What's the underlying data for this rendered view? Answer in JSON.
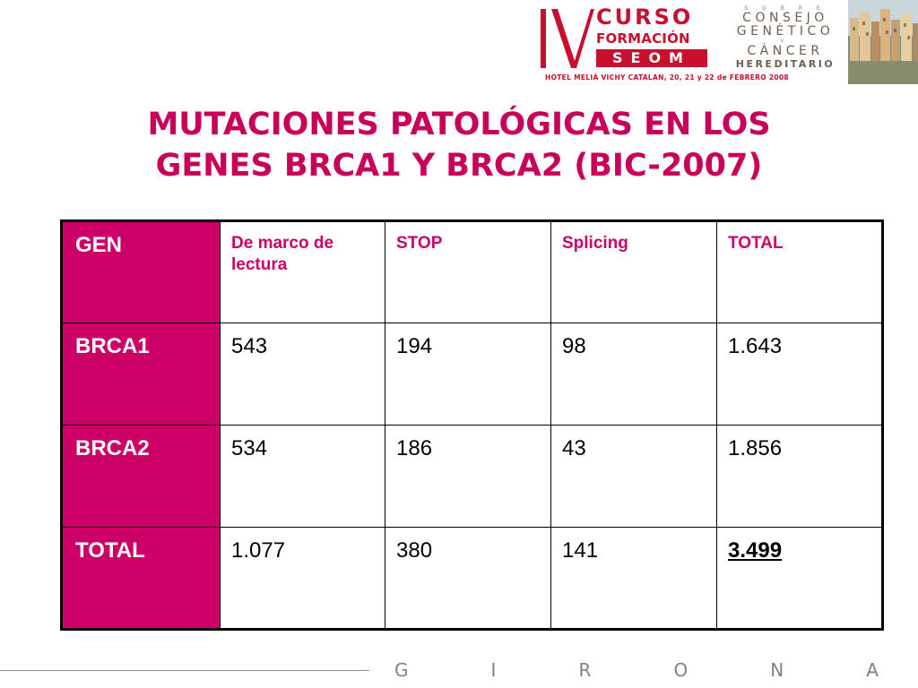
{
  "header": {
    "numeral": "IV",
    "curso": "CURSO",
    "formacion": "FORMACIÓN",
    "seom": "SEOM",
    "sobre": "S O B R E",
    "consejo": "CONSEJO",
    "genetico": "GENÉTICO",
    "y": "Y",
    "cancer": "CÁNCER",
    "hereditario": "HEREDITARIO",
    "hotel": "HOTEL MELIÁ VICHY CATALAN, 20, 21 y 22 de FEBRERO 2008"
  },
  "title_line1": "MUTACIONES PATOLÓGICAS EN LOS",
  "title_line2": "GENES BRCA1 Y BRCA2 (BIC-2007)",
  "table": {
    "headers": [
      "GEN",
      "De marco de lectura",
      "STOP",
      "Splicing",
      "TOTAL"
    ],
    "rows": [
      {
        "gene": "BRCA1",
        "values": [
          "543",
          "194",
          "98",
          "1.643"
        ]
      },
      {
        "gene": "BRCA2",
        "values": [
          "534",
          "186",
          "43",
          "1.856"
        ]
      },
      {
        "gene": "TOTAL",
        "values": [
          "1.077",
          "380",
          "141",
          "3.499"
        ]
      }
    ]
  },
  "footer": {
    "letters": [
      "G",
      "I",
      "R",
      "O",
      "N",
      "A"
    ]
  },
  "colors": {
    "accent": "#cc0066",
    "brand_red": "#c8102e"
  }
}
